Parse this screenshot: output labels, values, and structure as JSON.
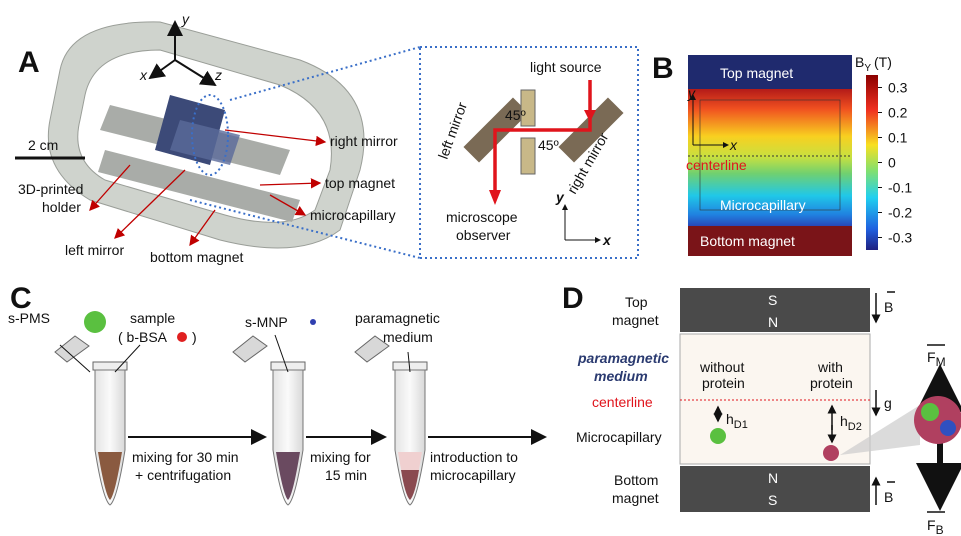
{
  "panel_a": {
    "label": "A",
    "axis_y": "y",
    "axis_x": "x",
    "axis_z": "z",
    "scale": "2 cm",
    "right_mirror": "right mirror",
    "top_magnet": "top magnet",
    "microcapillary": "microcapillary",
    "holder": [
      "3D-printed",
      "holder"
    ],
    "left_mirror": "left mirror",
    "bottom_magnet": "bottom magnet",
    "inset": {
      "light_source": "light source",
      "left_mirror": "left mirror",
      "right_mirror": "right mirror",
      "angle": "45º",
      "observer": [
        "microscope",
        "observer"
      ],
      "y": "y",
      "x": "x"
    }
  },
  "panel_b": {
    "label": "B",
    "title": "B",
    "title_sub": "Y",
    "title_unit": "(T)",
    "colorbar": {
      "range": [
        -0.35,
        0.35
      ],
      "ticks": [
        0.3,
        0.2,
        0.1,
        0,
        -0.1,
        -0.2,
        -0.3
      ]
    },
    "top_magnet": "Top magnet",
    "bottom_magnet": "Bottom magnet",
    "y": "y",
    "x": "x",
    "centerline": "centerline",
    "microcapillary": "Microcapillary"
  },
  "panel_c": {
    "label": "C",
    "s_pms": "s-PMS",
    "sample": "sample",
    "b_bsa": "( b-BSA",
    "close": ")",
    "s_mnp": "s-MNP",
    "medium": [
      "paramagnetic",
      "medium"
    ],
    "step1": [
      "mixing for 30 min",
      "+ centrifugation"
    ],
    "step2": [
      "mixing for",
      "15 min"
    ],
    "step3": [
      "introduction to",
      "microcapillary"
    ]
  },
  "panel_d": {
    "label": "D",
    "top_magnet": [
      "Top",
      "magnet"
    ],
    "top_poles": [
      "S",
      "N"
    ],
    "field": "B",
    "medium": [
      "paramagnetic",
      "medium"
    ],
    "without": [
      "without",
      "protein"
    ],
    "with": [
      "with",
      "protein"
    ],
    "centerline": "centerline",
    "gravity": "g",
    "microcapillary": "Microcapillary",
    "h1": "h",
    "h1_sub": "D1",
    "h2": "h",
    "h2_sub": "D2",
    "bottom_magnet": [
      "Bottom",
      "magnet"
    ],
    "bottom_poles": [
      "N",
      "S"
    ],
    "fm": "F",
    "fm_sub": "M",
    "fb": "F",
    "fb_sub": "B"
  }
}
